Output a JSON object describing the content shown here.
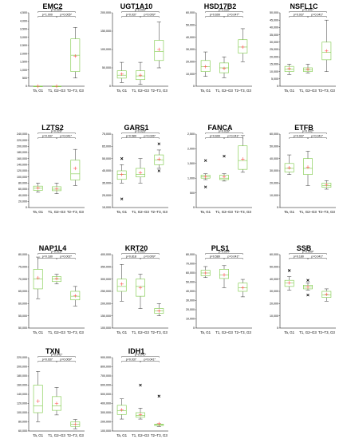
{
  "colors": {
    "box": "#7ac943",
    "whisker": "#000000",
    "mean": "#ff5050",
    "outlier": "#000000"
  },
  "categories": [
    "Ta, G1",
    "T1, G2–G3",
    "T2–T3, G3"
  ],
  "chart_data": [
    {
      "type": "box",
      "title": "EMC2",
      "ylim": [
        0,
        4500
      ],
      "yticks": [
        "0",
        "500",
        "1,000",
        "1,500",
        "2,000",
        "2,500",
        "3,000",
        "3,500",
        "4,000",
        "4,500"
      ],
      "yvals": [
        0,
        500,
        1000,
        1500,
        2000,
        2500,
        3000,
        3500,
        4000,
        4500
      ],
      "boxes": [
        {
          "min": 0,
          "q1": 0,
          "median": 0,
          "q3": 0,
          "max": 0,
          "mean": 0,
          "outliers": []
        },
        {
          "min": 0,
          "q1": 0,
          "median": 0,
          "q3": 0,
          "max": 0,
          "mean": 0,
          "outliers": []
        },
        {
          "min": 500,
          "q1": 900,
          "median": 1900,
          "q3": 2900,
          "max": 3600,
          "mean": 1850,
          "outliers": []
        }
      ],
      "pvalues": [
        {
          "from": 0,
          "to": 2,
          "label": "p=0.005*"
        },
        {
          "from": 0,
          "to": 1,
          "label": "p=1.000"
        },
        {
          "from": 1,
          "to": 2,
          "label": "p=0.005*"
        }
      ]
    },
    {
      "type": "box",
      "title": "UGT1A10",
      "ylim": [
        0,
        200000
      ],
      "yticks": [
        "0",
        "50,000",
        "100,000",
        "150,000",
        "200,000"
      ],
      "yvals": [
        0,
        50000,
        100000,
        150000,
        200000
      ],
      "boxes": [
        {
          "min": 10000,
          "q1": 22000,
          "median": 30000,
          "q3": 42000,
          "max": 65000,
          "mean": 33000,
          "outliers": []
        },
        {
          "min": 5000,
          "q1": 18000,
          "median": 28000,
          "q3": 42000,
          "max": 65000,
          "mean": 30000,
          "outliers": []
        },
        {
          "min": 50000,
          "q1": 70000,
          "median": 95000,
          "q3": 125000,
          "max": 175000,
          "mean": 100000,
          "outliers": []
        }
      ],
      "pvalues": [
        {
          "from": 0,
          "to": 2,
          "label": "p=0.009*"
        },
        {
          "from": 0,
          "to": 1,
          "label": "p=0.937"
        },
        {
          "from": 1,
          "to": 2,
          "label": "p=0.009*"
        }
      ]
    },
    {
      "type": "box",
      "title": "HSD17B2",
      "ylim": [
        0,
        60000
      ],
      "yticks": [
        "0",
        "10,000",
        "20,000",
        "30,000",
        "40,000",
        "50,000",
        "60,000"
      ],
      "yvals": [
        0,
        10000,
        20000,
        30000,
        40000,
        50000,
        60000
      ],
      "boxes": [
        {
          "min": 8000,
          "q1": 12000,
          "median": 16000,
          "q3": 21000,
          "max": 28000,
          "mean": 16000,
          "outliers": []
        },
        {
          "min": 7000,
          "q1": 11000,
          "median": 15000,
          "q3": 19000,
          "max": 24000,
          "mean": 14500,
          "outliers": []
        },
        {
          "min": 20000,
          "q1": 27000,
          "median": 32000,
          "q3": 38000,
          "max": 47000,
          "mean": 32000,
          "outliers": []
        }
      ],
      "pvalues": [
        {
          "from": 0,
          "to": 2,
          "label": "p=0.039*"
        },
        {
          "from": 0,
          "to": 1,
          "label": "p=0.699"
        },
        {
          "from": 1,
          "to": 2,
          "label": "p=0.047*"
        }
      ]
    },
    {
      "type": "box",
      "title": "NSFL1C",
      "ylim": [
        0,
        50000
      ],
      "yticks": [
        "0",
        "5,000",
        "10,000",
        "15,000",
        "20,000",
        "25,000",
        "30,000",
        "35,000",
        "40,000",
        "45,000",
        "50,000"
      ],
      "yvals": [
        0,
        5000,
        10000,
        15000,
        20000,
        25000,
        30000,
        35000,
        40000,
        45000,
        50000
      ],
      "boxes": [
        {
          "min": 8000,
          "q1": 10000,
          "median": 11500,
          "q3": 13500,
          "max": 15000,
          "mean": 12000,
          "outliers": []
        },
        {
          "min": 9000,
          "q1": 10000,
          "median": 11000,
          "q3": 12500,
          "max": 15000,
          "mean": 11500,
          "outliers": []
        },
        {
          "min": 10000,
          "q1": 18000,
          "median": 23000,
          "q3": 30000,
          "max": 45000,
          "mean": 24000,
          "outliers": []
        }
      ],
      "pvalues": [
        {
          "from": 0,
          "to": 2,
          "label": "p=0.041*"
        },
        {
          "from": 0,
          "to": 1,
          "label": "p=0.937"
        },
        {
          "from": 1,
          "to": 2,
          "label": "p=0.041*"
        }
      ]
    },
    {
      "type": "box",
      "title": "LZTS2",
      "ylim": [
        0,
        240000
      ],
      "yticks": [
        "0",
        "20,000",
        "40,000",
        "60,000",
        "80,000",
        "100,000",
        "120,000",
        "140,000",
        "160,000",
        "180,000",
        "200,000",
        "220,000",
        "240,000"
      ],
      "yvals": [
        0,
        20000,
        40000,
        60000,
        80000,
        100000,
        120000,
        140000,
        160000,
        180000,
        200000,
        220000,
        240000
      ],
      "boxes": [
        {
          "min": 50000,
          "q1": 56000,
          "median": 63000,
          "q3": 70000,
          "max": 80000,
          "mean": 64000,
          "outliers": []
        },
        {
          "min": 45000,
          "q1": 55000,
          "median": 60000,
          "q3": 68000,
          "max": 80000,
          "mean": 61000,
          "outliers": []
        },
        {
          "min": 72000,
          "q1": 90000,
          "median": 110000,
          "q3": 155000,
          "max": 190000,
          "mean": 128000,
          "outliers": []
        }
      ],
      "pvalues": [
        {
          "from": 0,
          "to": 2,
          "label": "p=0.026*"
        },
        {
          "from": 0,
          "to": 1,
          "label": "p=0.937"
        },
        {
          "from": 1,
          "to": 2,
          "label": "p=0.041*"
        }
      ]
    },
    {
      "type": "box",
      "title": "GARS1",
      "ylim": [
        15000,
        75000
      ],
      "yticks": [
        "15,000",
        "25,000",
        "35,000",
        "45,000",
        "55,000",
        "65,000",
        "75,000"
      ],
      "yvals": [
        15000,
        25000,
        35000,
        45000,
        55000,
        65000,
        75000
      ],
      "boxes": [
        {
          "min": 35000,
          "q1": 38000,
          "median": 42000,
          "q3": 45000,
          "max": 50000,
          "mean": 42000,
          "outliers": [
            55000,
            22000
          ]
        },
        {
          "min": 35000,
          "q1": 40000,
          "median": 42000,
          "q3": 47000,
          "max": 55000,
          "mean": 43500,
          "outliers": []
        },
        {
          "min": 47000,
          "q1": 50000,
          "median": 54000,
          "q3": 58000,
          "max": 62000,
          "mean": 54500,
          "outliers": [
            67000,
            45000
          ]
        }
      ],
      "pvalues": [
        {
          "from": 0,
          "to": 2,
          "label": "p=0.026*"
        },
        {
          "from": 0,
          "to": 1,
          "label": "p=0.589"
        },
        {
          "from": 1,
          "to": 2,
          "label": "p=0.026*"
        }
      ]
    },
    {
      "type": "box",
      "title": "FANCA",
      "ylim": [
        0,
        2500
      ],
      "yticks": [
        "0",
        "500",
        "1,000",
        "1,500",
        "2,000",
        "2,500"
      ],
      "yvals": [
        0,
        500,
        1000,
        1500,
        2000,
        2500
      ],
      "boxes": [
        {
          "min": 950,
          "q1": 1000,
          "median": 1050,
          "q3": 1100,
          "max": 1150,
          "mean": 1050,
          "outliers": [
            1600,
            700
          ]
        },
        {
          "min": 900,
          "q1": 950,
          "median": 1000,
          "q3": 1100,
          "max": 1150,
          "mean": 1050,
          "outliers": [
            1750
          ]
        },
        {
          "min": 1200,
          "q1": 1300,
          "median": 1600,
          "q3": 2100,
          "max": 2450,
          "mean": 1650,
          "outliers": []
        }
      ],
      "pvalues": [
        {
          "from": 0,
          "to": 2,
          "label": "p=0.026*"
        },
        {
          "from": 0,
          "to": 1,
          "label": "p=0.699"
        },
        {
          "from": 1,
          "to": 2,
          "label": "p=0.041*"
        }
      ]
    },
    {
      "type": "box",
      "title": "ETFB",
      "ylim": [
        0,
        60000
      ],
      "yticks": [
        "0",
        "10,000",
        "20,000",
        "30,000",
        "40,000",
        "50,000",
        "60,000"
      ],
      "yvals": [
        0,
        10000,
        20000,
        30000,
        40000,
        50000,
        60000
      ],
      "boxes": [
        {
          "min": 27000,
          "q1": 29000,
          "median": 32000,
          "q3": 36000,
          "max": 43000,
          "mean": 32500,
          "outliers": []
        },
        {
          "min": 18000,
          "q1": 27000,
          "median": 32000,
          "q3": 40000,
          "max": 46000,
          "mean": 33000,
          "outliers": []
        },
        {
          "min": 15000,
          "q1": 16500,
          "median": 18000,
          "q3": 20000,
          "max": 22000,
          "mean": 18500,
          "outliers": []
        }
      ],
      "pvalues": [
        {
          "from": 0,
          "to": 2,
          "label": "p=0.002*"
        },
        {
          "from": 0,
          "to": 1,
          "label": "p=0.937"
        },
        {
          "from": 1,
          "to": 2,
          "label": "p=0.041*"
        }
      ]
    },
    {
      "type": "box",
      "title": "NAP1L4",
      "ylim": [
        50000,
        80000
      ],
      "yticks": [
        "50,000",
        "55,000",
        "60,000",
        "65,000",
        "70,000",
        "75,000",
        "80,000"
      ],
      "yvals": [
        50000,
        55000,
        60000,
        65000,
        70000,
        75000,
        80000
      ],
      "boxes": [
        {
          "min": 62000,
          "q1": 66000,
          "median": 70000,
          "q3": 74000,
          "max": 79000,
          "mean": 70500,
          "outliers": []
        },
        {
          "min": 68000,
          "q1": 69000,
          "median": 70000,
          "q3": 71000,
          "max": 72000,
          "mean": 70200,
          "outliers": []
        },
        {
          "min": 59000,
          "q1": 61500,
          "median": 63000,
          "q3": 65000,
          "max": 67000,
          "mean": 63200,
          "outliers": []
        }
      ],
      "pvalues": [
        {
          "from": 0,
          "to": 2,
          "label": "p=0.015*"
        },
        {
          "from": 0,
          "to": 1,
          "label": "p=0.180"
        },
        {
          "from": 1,
          "to": 2,
          "label": "p=0.002*"
        }
      ]
    },
    {
      "type": "box",
      "title": "KRT20",
      "ylim": [
        100000,
        400000
      ],
      "yticks": [
        "100,000",
        "150,000",
        "200,000",
        "250,000",
        "300,000",
        "350,000",
        "400,000"
      ],
      "yvals": [
        100000,
        150000,
        200000,
        250000,
        300000,
        350000,
        400000
      ],
      "boxes": [
        {
          "min": 210000,
          "q1": 250000,
          "median": 270000,
          "q3": 300000,
          "max": 360000,
          "mean": 280000,
          "outliers": []
        },
        {
          "min": 180000,
          "q1": 230000,
          "median": 270000,
          "q3": 300000,
          "max": 320000,
          "mean": 265000,
          "outliers": []
        },
        {
          "min": 150000,
          "q1": 160000,
          "median": 170000,
          "q3": 180000,
          "max": 200000,
          "mean": 170000,
          "outliers": []
        }
      ],
      "pvalues": [
        {
          "from": 0,
          "to": 2,
          "label": "p=0.002*"
        },
        {
          "from": 0,
          "to": 1,
          "label": "p=0.818"
        },
        {
          "from": 1,
          "to": 2,
          "label": "p=0.009*"
        }
      ]
    },
    {
      "type": "box",
      "title": "PLS1",
      "ylim": [
        0,
        80000
      ],
      "yticks": [
        "0",
        "10,000",
        "20,000",
        "30,000",
        "40,000",
        "50,000",
        "60,000",
        "70,000",
        "80,000"
      ],
      "yvals": [
        0,
        10000,
        20000,
        30000,
        40000,
        50000,
        60000,
        70000,
        80000
      ],
      "boxes": [
        {
          "min": 55000,
          "q1": 57000,
          "median": 60000,
          "q3": 63000,
          "max": 67000,
          "mean": 60000,
          "outliers": []
        },
        {
          "min": 44000,
          "q1": 54000,
          "median": 58000,
          "q3": 64000,
          "max": 68000,
          "mean": 58000,
          "outliers": []
        },
        {
          "min": 34000,
          "q1": 40000,
          "median": 44000,
          "q3": 49000,
          "max": 53000,
          "mean": 44000,
          "outliers": []
        }
      ],
      "pvalues": [
        {
          "from": 0,
          "to": 2,
          "label": "p=0.004*"
        },
        {
          "from": 0,
          "to": 1,
          "label": "p=0.589"
        },
        {
          "from": 1,
          "to": 2,
          "label": "p=0.041*"
        }
      ]
    },
    {
      "type": "box",
      "title": "SSB",
      "ylim": [
        0,
        60000
      ],
      "yticks": [
        "0",
        "10,000",
        "20,000",
        "30,000",
        "40,000",
        "50,000",
        "60,000"
      ],
      "yvals": [
        0,
        10000,
        20000,
        30000,
        40000,
        50000,
        60000
      ],
      "boxes": [
        {
          "min": 31000,
          "q1": 34000,
          "median": 37000,
          "q3": 39000,
          "max": 42000,
          "mean": 37000,
          "outliers": [
            47000
          ]
        },
        {
          "min": 31000,
          "q1": 32000,
          "median": 33500,
          "q3": 35000,
          "max": 37000,
          "mean": 33500,
          "outliers": [
            39000,
            27000
          ]
        },
        {
          "min": 22000,
          "q1": 25000,
          "median": 27000,
          "q3": 30000,
          "max": 32000,
          "mean": 27500,
          "outliers": []
        }
      ],
      "pvalues": [
        {
          "from": 0,
          "to": 2,
          "label": "p=0.009*"
        },
        {
          "from": 0,
          "to": 1,
          "label": "p=0.180"
        },
        {
          "from": 1,
          "to": 2,
          "label": "p=0.041*"
        }
      ]
    },
    {
      "type": "box",
      "title": "TXN",
      "ylim": [
        60000,
        220000
      ],
      "yticks": [
        "60,000",
        "80,000",
        "100,000",
        "120,000",
        "140,000",
        "160,000",
        "180,000",
        "200,000",
        "220,000"
      ],
      "yvals": [
        60000,
        80000,
        100000,
        120000,
        140000,
        160000,
        180000,
        200000,
        220000
      ],
      "boxes": [
        {
          "min": 80000,
          "q1": 100000,
          "median": 115000,
          "q3": 160000,
          "max": 190000,
          "mean": 125000,
          "outliers": []
        },
        {
          "min": 95000,
          "q1": 105000,
          "median": 115000,
          "q3": 135000,
          "max": 155000,
          "mean": 120000,
          "outliers": []
        },
        {
          "min": 65000,
          "q1": 70000,
          "median": 75000,
          "q3": 80000,
          "max": 85000,
          "mean": 75000,
          "outliers": []
        }
      ],
      "pvalues": [
        {
          "from": 0,
          "to": 2,
          "label": "p=0.041*"
        },
        {
          "from": 0,
          "to": 1,
          "label": "p=0.937"
        },
        {
          "from": 1,
          "to": 2,
          "label": "p=0.009*"
        }
      ]
    },
    {
      "type": "box",
      "title": "IDH1",
      "ylim": [
        100000,
        900000
      ],
      "yticks": [
        "100,000",
        "200,000",
        "300,000",
        "400,000",
        "500,000",
        "600,000",
        "700,000",
        "800,000",
        "900,000"
      ],
      "yvals": [
        100000,
        200000,
        300000,
        400000,
        500000,
        600000,
        700000,
        800000,
        900000
      ],
      "boxes": [
        {
          "min": 230000,
          "q1": 280000,
          "median": 320000,
          "q3": 380000,
          "max": 450000,
          "mean": 330000,
          "outliers": []
        },
        {
          "min": 230000,
          "q1": 250000,
          "median": 270000,
          "q3": 300000,
          "max": 350000,
          "mean": 280000,
          "outliers": [
            600000
          ]
        },
        {
          "min": 150000,
          "q1": 160000,
          "median": 170000,
          "q3": 175000,
          "max": 180000,
          "mean": 180000,
          "outliers": [
            480000
          ]
        }
      ],
      "pvalues": [
        {
          "from": 0,
          "to": 2,
          "label": "p=0.041*"
        },
        {
          "from": 0,
          "to": 1,
          "label": "p=0.937"
        },
        {
          "from": 1,
          "to": 2,
          "label": "p=0.041*"
        }
      ]
    }
  ]
}
